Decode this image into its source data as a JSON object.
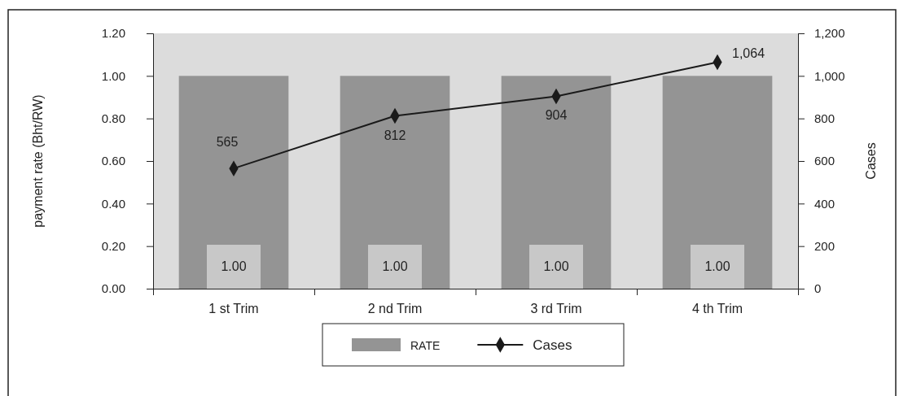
{
  "chart_data": {
    "type": "bar",
    "categories": [
      "1 st Trim",
      "2 nd Trim",
      "3 rd Trim",
      "4 th Trim"
    ],
    "series": [
      {
        "name": "RATE",
        "color": "#949494",
        "values": [
          1,
          1,
          1,
          1
        ],
        "value_labels": [
          "1.00",
          "1.00",
          "1.00",
          "1.00"
        ]
      },
      {
        "name": "Cases",
        "type": "line",
        "axis": "y2",
        "color": "#1a1a1a",
        "values": [
          565,
          812,
          904,
          1064
        ],
        "value_labels": [
          "565",
          "812",
          "904",
          "1,064"
        ],
        "marker": "diamond"
      }
    ],
    "ylabel": "payment rate (Bht/RW)",
    "y2label": "Cases",
    "ylim": [
      0,
      1.2
    ],
    "yticks": [
      {
        "value": 0,
        "label": "0.00"
      },
      {
        "value": 0.2,
        "label": "0.20"
      },
      {
        "value": 0.4,
        "label": "0.40"
      },
      {
        "value": 0.6,
        "label": "0.60"
      },
      {
        "value": 0.8,
        "label": "0.80"
      },
      {
        "value": 1,
        "label": "1.00"
      },
      {
        "value": 1.2,
        "label": "1.20"
      }
    ],
    "y2lim": [
      0,
      1200
    ],
    "y2ticks": [
      0,
      200,
      400,
      600,
      800,
      {
        "value": 1000,
        "label": "1,000"
      },
      {
        "value": 1200,
        "label": "1,200"
      }
    ],
    "grid": false,
    "legend": "bottom"
  }
}
